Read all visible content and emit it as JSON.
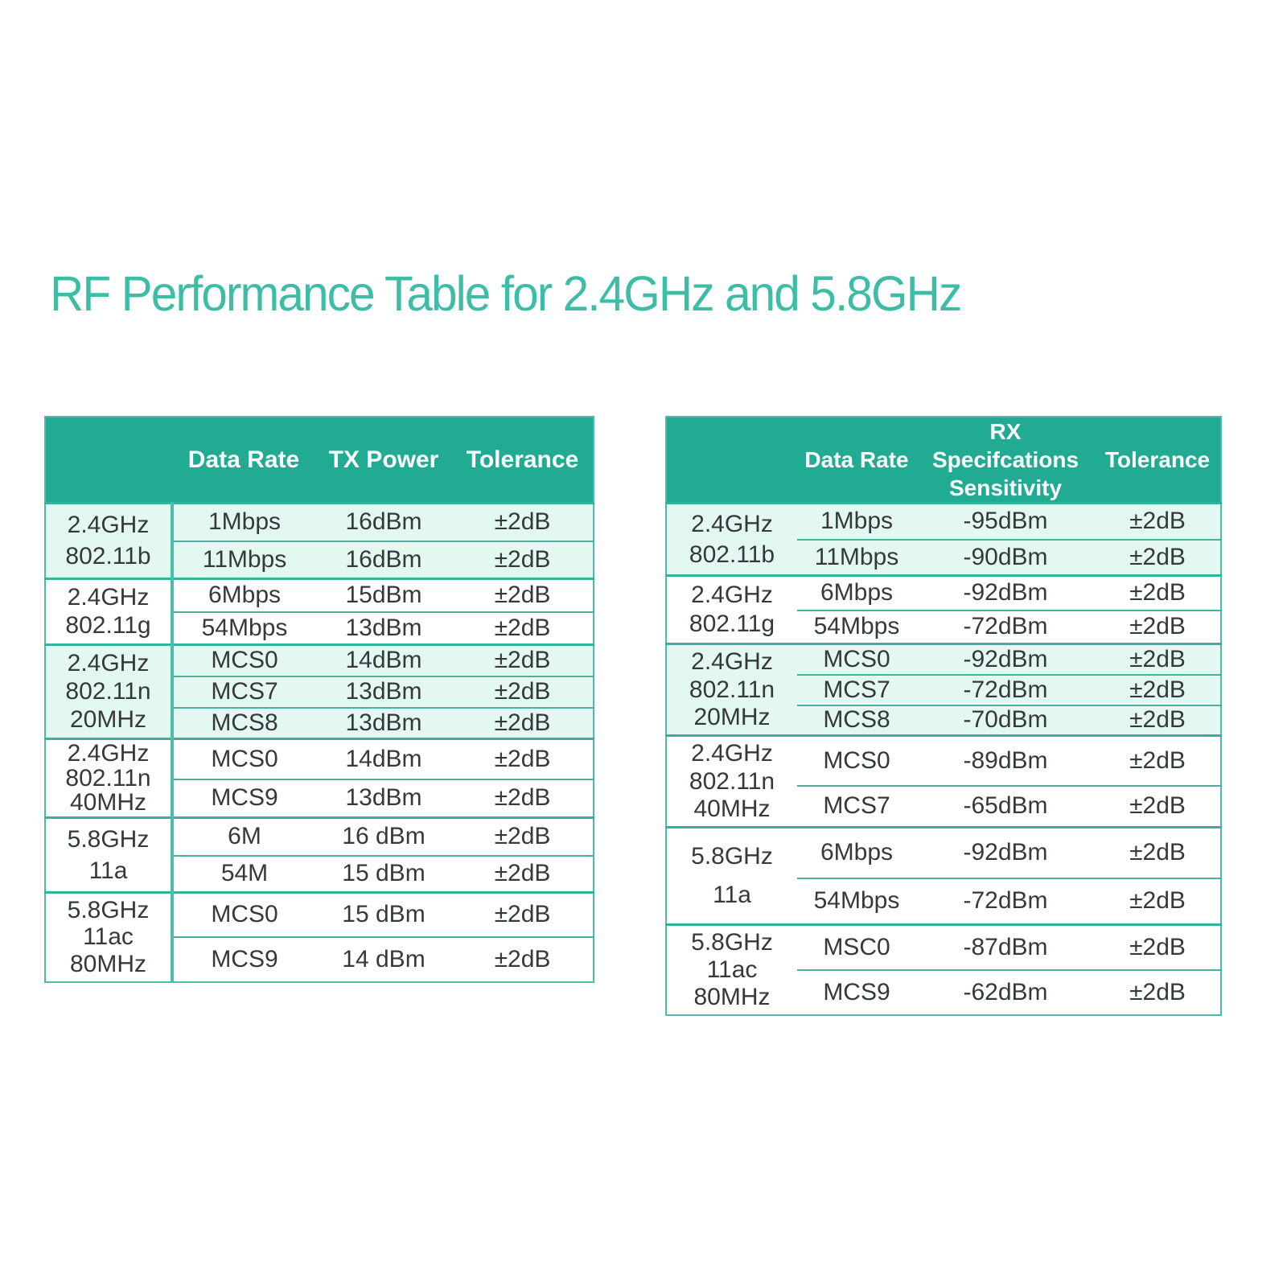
{
  "title": "RF Performance Table for 2.4GHz and 5.8GHz",
  "colors": {
    "header_teal": "#21ab93",
    "title_teal": "#3ebda6",
    "border_teal": "#4fbcab",
    "group_divider_teal": "#35b19b",
    "sub_divider_teal": "#49b0a0",
    "mint_row": "#e4f8f2",
    "body_text": "#35393b",
    "header_text": "#ffffff"
  },
  "tables": [
    {
      "id": "tx",
      "name": "tx-power-table",
      "columns": [
        "",
        "Data Rate",
        "TX Power",
        "Tolerance"
      ],
      "groups": [
        {
          "band": [
            "2.4GHz",
            "802.11b"
          ],
          "shaded": true,
          "rows": [
            [
              "1Mbps",
              "16dBm",
              "±2dB"
            ],
            [
              "11Mbps",
              "16dBm",
              "±2dB"
            ]
          ]
        },
        {
          "band": [
            "2.4GHz",
            "802.11g"
          ],
          "shaded": false,
          "rows": [
            [
              "6Mbps",
              "15dBm",
              "±2dB"
            ],
            [
              "54Mbps",
              "13dBm",
              "±2dB"
            ]
          ]
        },
        {
          "band": [
            "2.4GHz",
            "802.11n",
            "20MHz"
          ],
          "shaded": true,
          "rows": [
            [
              "MCS0",
              "14dBm",
              "±2dB"
            ],
            [
              "MCS7",
              "13dBm",
              "±2dB"
            ],
            [
              "MCS8",
              "13dBm",
              "±2dB"
            ]
          ]
        },
        {
          "band": [
            "2.4GHz",
            "802.11n",
            "40MHz"
          ],
          "shaded": false,
          "rows": [
            [
              "MCS0",
              "14dBm",
              "±2dB"
            ],
            [
              "MCS9",
              "13dBm",
              "±2dB"
            ]
          ]
        },
        {
          "band": [
            "5.8GHz",
            "11a"
          ],
          "shaded": false,
          "rows": [
            [
              "6M",
              "16 dBm",
              "±2dB"
            ],
            [
              "54M",
              "15 dBm",
              "±2dB"
            ]
          ]
        },
        {
          "band": [
            "5.8GHz",
            "11ac",
            "80MHz"
          ],
          "shaded": false,
          "rows": [
            [
              "MCS0",
              "15 dBm",
              "±2dB"
            ],
            [
              "MCS9",
              "14 dBm",
              "±2dB"
            ]
          ]
        }
      ]
    },
    {
      "id": "rx",
      "name": "rx-sensitivity-table",
      "columns": [
        "",
        "Data Rate",
        "RX Specifcations\nSensitivity",
        "Tolerance"
      ],
      "groups": [
        {
          "band": [
            "2.4GHz",
            "802.11b"
          ],
          "shaded": true,
          "rows": [
            [
              "1Mbps",
              "-95dBm",
              "±2dB"
            ],
            [
              "11Mbps",
              "-90dBm",
              "±2dB"
            ]
          ]
        },
        {
          "band": [
            "2.4GHz",
            "802.11g"
          ],
          "shaded": false,
          "rows": [
            [
              "6Mbps",
              "-92dBm",
              "±2dB"
            ],
            [
              "54Mbps",
              "-72dBm",
              "±2dB"
            ]
          ]
        },
        {
          "band": [
            "2.4GHz",
            "802.11n",
            "20MHz"
          ],
          "shaded": true,
          "rows": [
            [
              "MCS0",
              "-92dBm",
              "±2dB"
            ],
            [
              "MCS7",
              "-72dBm",
              "±2dB"
            ],
            [
              "MCS8",
              "-70dBm",
              "±2dB"
            ]
          ]
        },
        {
          "band": [
            "2.4GHz",
            "802.11n",
            "40MHz"
          ],
          "shaded": false,
          "rows": [
            [
              "MCS0",
              "-89dBm",
              "±2dB"
            ],
            [
              "MCS7",
              "-65dBm",
              "±2dB"
            ]
          ]
        },
        {
          "band": [
            "5.8GHz",
            "11a"
          ],
          "shaded": false,
          "rows": [
            [
              "6Mbps",
              "-92dBm",
              "±2dB"
            ],
            [
              "54Mbps",
              "-72dBm",
              "±2dB"
            ]
          ]
        },
        {
          "band": [
            "5.8GHz",
            "11ac",
            "80MHz"
          ],
          "shaded": false,
          "rows": [
            [
              "MSC0",
              "-87dBm",
              "±2dB"
            ],
            [
              "MCS9",
              "-62dBm",
              "±2dB"
            ]
          ]
        }
      ]
    }
  ]
}
